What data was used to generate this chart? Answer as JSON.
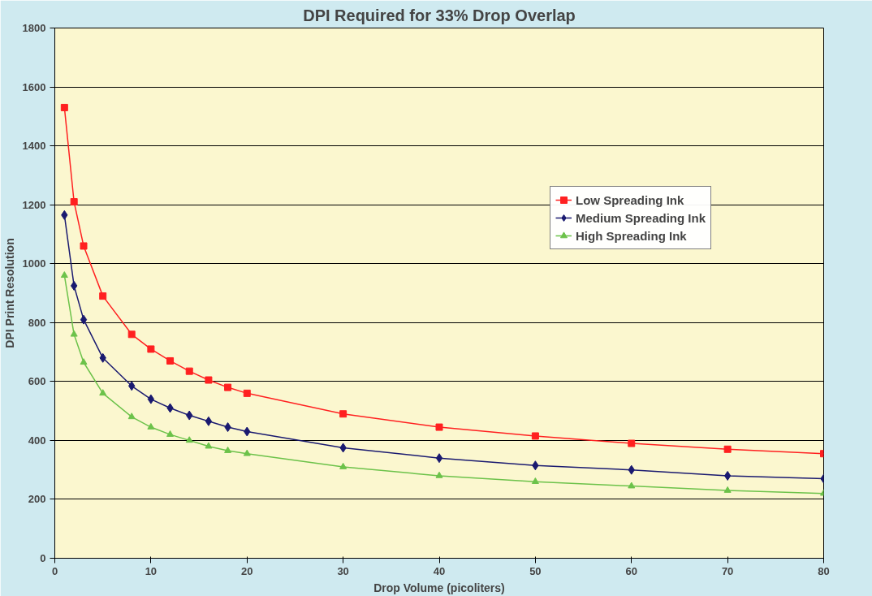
{
  "chart_data": {
    "type": "line",
    "title": "DPI Required for 33% Drop Overlap",
    "xlabel": "Drop Volume (picoliters)",
    "ylabel": "DPI Print Resolution",
    "x": [
      1,
      2,
      3,
      5,
      8,
      10,
      12,
      14,
      16,
      18,
      20,
      30,
      40,
      50,
      60,
      70,
      80
    ],
    "series": [
      {
        "name": "Low Spreading Ink",
        "color": "#ff2020",
        "marker": "square",
        "values": [
          1530,
          1210,
          1060,
          890,
          760,
          710,
          670,
          635,
          605,
          580,
          560,
          490,
          445,
          415,
          390,
          370,
          355
        ]
      },
      {
        "name": "Medium Spreading Ink",
        "color": "#1a1a70",
        "marker": "diamond",
        "values": [
          1165,
          925,
          810,
          680,
          585,
          540,
          510,
          485,
          465,
          445,
          430,
          375,
          340,
          315,
          300,
          280,
          270
        ]
      },
      {
        "name": "High Spreading Ink",
        "color": "#6cc24a",
        "marker": "triangle",
        "values": [
          960,
          760,
          665,
          560,
          480,
          445,
          420,
          400,
          380,
          365,
          355,
          310,
          280,
          260,
          245,
          230,
          220
        ]
      }
    ],
    "xlim": [
      0,
      80
    ],
    "xticks": [
      0,
      10,
      20,
      30,
      40,
      50,
      60,
      70,
      80
    ],
    "ylim": [
      0,
      1800
    ],
    "yticks": [
      0,
      200,
      400,
      600,
      800,
      1000,
      1200,
      1400,
      1600,
      1800
    ],
    "grid": "y",
    "legend": "top right"
  }
}
